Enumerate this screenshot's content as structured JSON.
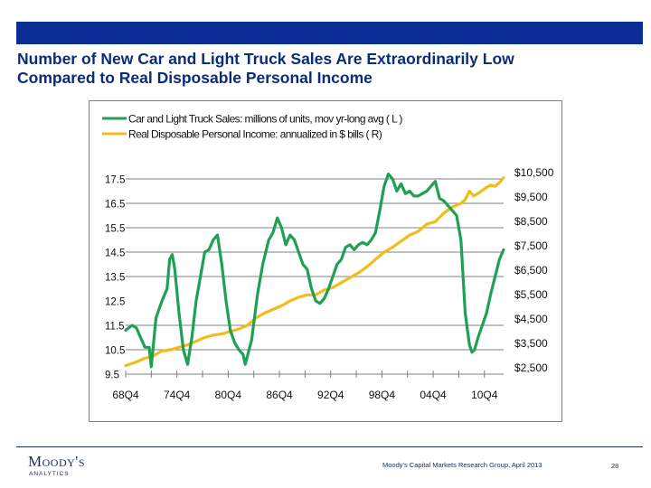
{
  "slide": {
    "title_line1": "Number of New Car and Light Truck Sales Are Extraordinarily  Low",
    "title_line2": "Compared to Real Disposable Personal Income",
    "logo_main": "Moody's",
    "logo_sub": "ANALYTICS",
    "source": "Moody's Capital Markets Research Group,  April 2013",
    "page_number": "28",
    "colors": {
      "header_bar": "#0a2d96",
      "title": "#0a2d7a",
      "sales_line": "#1fa055",
      "income_line": "#f2bd1b",
      "grid": "#808080"
    }
  },
  "chart_data": {
    "type": "line",
    "title": "",
    "xlabel": "",
    "ylabel_left": "Car and Light Truck Sales (millions of units)",
    "ylabel_right": "Real Disposable Personal Income ($ bills)",
    "legend_position": "top-left",
    "grid": true,
    "x_tick_labels": [
      "68Q4",
      "74Q4",
      "80Q4",
      "86Q4",
      "92Q4",
      "98Q4",
      "04Q4",
      "10Q4"
    ],
    "x_tick_years": [
      1968.75,
      1974.75,
      1980.75,
      1986.75,
      1992.75,
      1998.75,
      2004.75,
      2010.75
    ],
    "x_minor_tick_step_years": 3,
    "x_range": [
      1968.75,
      2013.0
    ],
    "y_left": {
      "ticks": [
        "9.5",
        "10.5",
        "11.5",
        "12.5",
        "13.5",
        "14.5",
        "15.5",
        "16.5",
        "17.5"
      ],
      "range": [
        9.5,
        17.5
      ]
    },
    "y_right": {
      "ticks": [
        "$2,500",
        "$3,500",
        "$4,500",
        "$5,500",
        "$6,500",
        "$7,500",
        "$8,500",
        "$9,500",
        "$10,500"
      ],
      "range": [
        2500,
        10500
      ]
    },
    "series": [
      {
        "name": "Car and Light Truck Sales: millions of units, mov yr-long avg  ( L )",
        "axis": "left",
        "x": [
          1968.75,
          1969.5,
          1970.0,
          1970.5,
          1971.0,
          1971.5,
          1971.75,
          1972.3,
          1973.0,
          1973.6,
          1973.9,
          1974.2,
          1974.5,
          1975.0,
          1975.5,
          1976.0,
          1976.5,
          1977.0,
          1977.5,
          1978.0,
          1978.5,
          1979.0,
          1979.5,
          1980.0,
          1980.5,
          1981.0,
          1981.5,
          1982.0,
          1982.5,
          1982.75,
          1983.5,
          1984.2,
          1984.8,
          1985.5,
          1986.0,
          1986.5,
          1987.0,
          1987.5,
          1988.0,
          1988.5,
          1989.0,
          1989.5,
          1990.0,
          1990.5,
          1991.0,
          1991.5,
          1992.0,
          1992.5,
          1993.0,
          1993.5,
          1994.0,
          1994.5,
          1995.0,
          1995.5,
          1996.0,
          1996.5,
          1997.0,
          1997.5,
          1998.0,
          1998.5,
          1999.0,
          1999.5,
          2000.0,
          2000.5,
          2001.0,
          2001.5,
          2002.0,
          2002.5,
          2003.0,
          2003.5,
          2004.0,
          2004.5,
          2005.0,
          2005.5,
          2006.0,
          2006.5,
          2007.0,
          2007.5,
          2008.0,
          2008.5,
          2009.0,
          2009.3,
          2009.6,
          2010.0,
          2010.5,
          2011.0,
          2011.5,
          2012.0,
          2012.5,
          2013.0
        ],
        "values": [
          11.3,
          11.5,
          11.4,
          11.0,
          10.6,
          10.6,
          9.8,
          11.8,
          12.5,
          13.0,
          14.2,
          14.4,
          13.8,
          12.0,
          10.5,
          9.9,
          11.0,
          12.5,
          13.5,
          14.5,
          14.6,
          15.0,
          15.2,
          14.0,
          12.5,
          11.3,
          10.8,
          10.5,
          10.3,
          9.9,
          10.9,
          12.8,
          14.0,
          15.0,
          15.3,
          15.9,
          15.5,
          14.8,
          15.2,
          15.0,
          14.5,
          14.0,
          13.8,
          13.0,
          12.5,
          12.4,
          12.6,
          13.0,
          13.5,
          14.0,
          14.2,
          14.7,
          14.8,
          14.6,
          14.8,
          14.9,
          14.8,
          15.0,
          15.3,
          16.2,
          17.2,
          17.7,
          17.5,
          17.0,
          17.3,
          16.9,
          17.0,
          16.8,
          16.8,
          16.9,
          17.0,
          17.2,
          17.4,
          16.7,
          16.6,
          16.4,
          16.2,
          16.0,
          15.0,
          12.0,
          10.7,
          10.4,
          10.5,
          11.0,
          11.5,
          12.0,
          12.8,
          13.5,
          14.2,
          14.6
        ]
      },
      {
        "name": "Real Disposable Personal Income: annualized in $ bills ( R)",
        "axis": "right",
        "x": [
          1968.75,
          1970.0,
          1971.0,
          1972.0,
          1973.0,
          1974.0,
          1975.0,
          1976.0,
          1977.0,
          1978.0,
          1979.0,
          1980.0,
          1981.0,
          1982.0,
          1983.0,
          1984.0,
          1985.0,
          1986.0,
          1987.0,
          1988.0,
          1989.0,
          1990.0,
          1991.0,
          1992.0,
          1993.0,
          1994.0,
          1995.0,
          1996.0,
          1997.0,
          1998.0,
          1999.0,
          2000.0,
          2001.0,
          2002.0,
          2003.0,
          2004.0,
          2005.0,
          2006.0,
          2007.0,
          2008.0,
          2008.5,
          2009.0,
          2009.5,
          2010.0,
          2011.0,
          2011.5,
          2012.0,
          2012.5,
          2013.0
        ],
        "values": [
          2850,
          3000,
          3150,
          3250,
          3450,
          3500,
          3600,
          3700,
          3850,
          4000,
          4100,
          4150,
          4250,
          4350,
          4500,
          4800,
          5000,
          5150,
          5300,
          5500,
          5650,
          5750,
          5750,
          5950,
          6050,
          6250,
          6450,
          6650,
          6900,
          7200,
          7500,
          7700,
          7950,
          8200,
          8350,
          8650,
          8750,
          9100,
          9350,
          9500,
          9650,
          10000,
          9800,
          9900,
          10150,
          10250,
          10200,
          10350,
          10550
        ]
      }
    ]
  }
}
